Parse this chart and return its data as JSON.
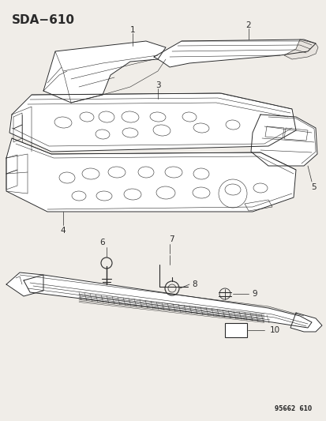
{
  "title": "SDA−610",
  "footer": "95662  610",
  "bg_color": "#f0ede8",
  "line_color": "#2a2a2a",
  "figsize": [
    4.14,
    5.33
  ],
  "dpi": 100,
  "panel1_label": "1",
  "panel2_label": "2",
  "panel3_label": "3",
  "panel4_label": "4",
  "panel5_label": "5",
  "panel6_label": "6",
  "panel7_label": "7",
  "panel8_label": "8",
  "panel9_label": "9",
  "panel10_label": "10"
}
